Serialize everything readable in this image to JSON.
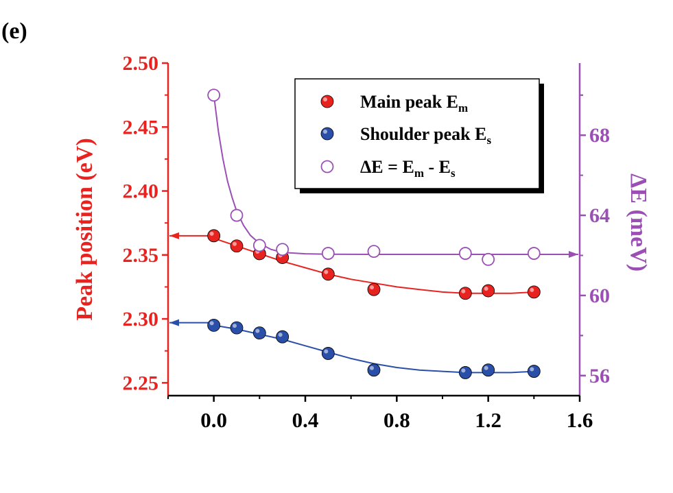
{
  "panel_label": "(e)",
  "chart_data": {
    "type": "scatter",
    "x_axis": {
      "ticks": [
        "0.0",
        "0.4",
        "0.8",
        "1.2",
        "1.6"
      ],
      "tick_values": [
        0.0,
        0.4,
        0.8,
        1.2,
        1.6
      ],
      "range": [
        -0.2,
        1.6
      ]
    },
    "y_left": {
      "label": "Peak position (eV)",
      "ticks": [
        "2.25",
        "2.30",
        "2.35",
        "2.40",
        "2.45",
        "2.50"
      ],
      "tick_values": [
        2.25,
        2.3,
        2.35,
        2.4,
        2.45,
        2.5
      ],
      "range": [
        2.24,
        2.5
      ],
      "color": "#e8231f"
    },
    "y_right": {
      "label": "ΔE (meV)",
      "ticks": [
        "56",
        "60",
        "64",
        "68"
      ],
      "tick_values": [
        56,
        60,
        64,
        68
      ],
      "range": [
        55.0,
        71.6
      ],
      "color": "#9b4fb5"
    },
    "legend_position": "top-right",
    "series": [
      {
        "name": "Main peak E",
        "name_sub": "m",
        "axis": "left",
        "marker": "filled-circle",
        "color": "#e8231f",
        "x": [
          0.0,
          0.1,
          0.2,
          0.3,
          0.5,
          0.7,
          1.1,
          1.2,
          1.4
        ],
        "y": [
          2.365,
          2.357,
          2.351,
          2.348,
          2.335,
          2.323,
          2.32,
          2.322,
          2.321
        ]
      },
      {
        "name": "Shoulder peak E",
        "name_sub": "s",
        "axis": "left",
        "marker": "filled-circle",
        "color": "#2a4fa8",
        "x": [
          0.0,
          0.1,
          0.2,
          0.3,
          0.5,
          0.7,
          1.1,
          1.2,
          1.4
        ],
        "y": [
          2.295,
          2.293,
          2.289,
          2.286,
          2.273,
          2.26,
          2.258,
          2.26,
          2.259
        ]
      },
      {
        "name_parts": [
          "ΔE = E",
          "m",
          " - E",
          "s"
        ],
        "axis": "right",
        "marker": "open-circle",
        "color": "#9b4fb5",
        "x": [
          0.0,
          0.1,
          0.2,
          0.3,
          0.5,
          0.7,
          1.1,
          1.2,
          1.4
        ],
        "y": [
          70.0,
          64.0,
          62.5,
          62.3,
          62.1,
          62.2,
          62.1,
          61.8,
          62.1
        ]
      }
    ],
    "fit_curves": [
      {
        "color": "#e8231f",
        "axis": "left",
        "x": [
          0.0,
          0.1,
          0.2,
          0.3,
          0.4,
          0.5,
          0.6,
          0.7,
          0.8,
          0.9,
          1.0,
          1.1,
          1.2,
          1.3,
          1.4
        ],
        "y": [
          2.363,
          2.357,
          2.351,
          2.345,
          2.34,
          2.335,
          2.331,
          2.328,
          2.325,
          2.323,
          2.321,
          2.32,
          2.32,
          2.32,
          2.321
        ]
      },
      {
        "color": "#2a4fa8",
        "axis": "left",
        "x": [
          0.0,
          0.1,
          0.2,
          0.3,
          0.4,
          0.5,
          0.6,
          0.7,
          0.8,
          0.9,
          1.0,
          1.1,
          1.2,
          1.3,
          1.4
        ],
        "y": [
          2.295,
          2.292,
          2.288,
          2.284,
          2.279,
          2.274,
          2.269,
          2.265,
          2.262,
          2.26,
          2.259,
          2.258,
          2.258,
          2.258,
          2.259
        ]
      },
      {
        "color": "#9b4fb5",
        "axis": "right",
        "x": [
          0.0,
          0.02,
          0.04,
          0.06,
          0.08,
          0.1,
          0.13,
          0.16,
          0.2,
          0.25,
          0.3,
          0.4,
          0.5,
          0.7,
          1.0,
          1.4
        ],
        "y": [
          70.0,
          68.2,
          66.8,
          65.7,
          64.9,
          64.2,
          63.5,
          63.0,
          62.6,
          62.3,
          62.15,
          62.08,
          62.06,
          62.05,
          62.05,
          62.05
        ]
      }
    ],
    "arrows": [
      {
        "color": "#e8231f",
        "axis": "left",
        "direction": "left",
        "y": 2.365,
        "x_from": -0.02
      },
      {
        "color": "#2a4fa8",
        "axis": "left",
        "direction": "left",
        "y": 2.297,
        "x_from": -0.02
      },
      {
        "color": "#9b4fb5",
        "axis": "right",
        "direction": "right",
        "y": 62.05,
        "x_from": 1.42
      }
    ]
  }
}
